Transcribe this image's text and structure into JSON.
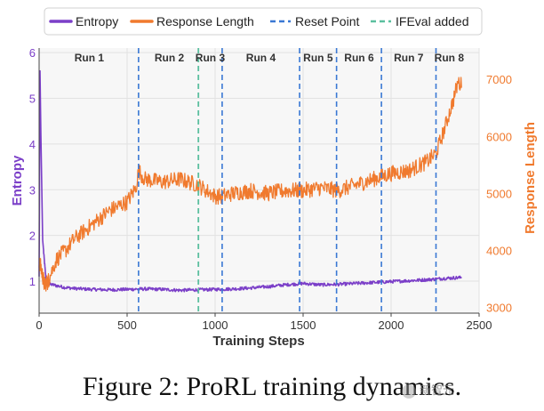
{
  "chart_data": {
    "type": "line",
    "title": "",
    "xlabel": "Training Steps",
    "ylabel_left": "Entropy",
    "ylabel_right": "Response Length",
    "xlim": [
      0,
      2500
    ],
    "ylim_left": [
      0.3,
      6.1
    ],
    "ylim_right": [
      2900,
      7550
    ],
    "x_ticks": [
      0,
      500,
      1000,
      1500,
      2000,
      2500
    ],
    "y_left_ticks": [
      1,
      2,
      3,
      4,
      5,
      6
    ],
    "y_right_ticks": [
      3000,
      4000,
      5000,
      6000,
      7000
    ],
    "grid": true,
    "legend_position": "top",
    "legend": [
      {
        "label": "Entropy",
        "style": "line",
        "color": "#7b3fc8"
      },
      {
        "label": "Response Length",
        "style": "line",
        "color": "#f07a2e"
      },
      {
        "label": "Reset Point",
        "style": "dashed",
        "color": "#3a78d4"
      },
      {
        "label": "IFEval added",
        "style": "dashed",
        "color": "#5bbf9f"
      }
    ],
    "reset_points": [
      565,
      1040,
      1480,
      1690,
      1945,
      2255
    ],
    "ifeval_added": 905,
    "runs": [
      {
        "label": "Run 1",
        "x": 285
      },
      {
        "label": "Run 2",
        "x": 740
      },
      {
        "label": "Run 3",
        "x": 972
      },
      {
        "label": "Run 4",
        "x": 1260
      },
      {
        "label": "Run 5",
        "x": 1585
      },
      {
        "label": "Run 6",
        "x": 1818
      },
      {
        "label": "Run 7",
        "x": 2100
      },
      {
        "label": "Run 8",
        "x": 2330
      }
    ],
    "series": [
      {
        "name": "Entropy",
        "axis": "left",
        "color": "#7b3fc8",
        "x": [
          0,
          5,
          10,
          20,
          40,
          60,
          80,
          100,
          150,
          200,
          300,
          400,
          500,
          600,
          700,
          800,
          900,
          1000,
          1100,
          1200,
          1300,
          1400,
          1500,
          1600,
          1700,
          1800,
          1900,
          2000,
          2100,
          2200,
          2300,
          2400
        ],
        "y": [
          1.1,
          5.6,
          4.2,
          1.9,
          1.0,
          0.93,
          0.92,
          0.9,
          0.86,
          0.84,
          0.82,
          0.81,
          0.82,
          0.83,
          0.82,
          0.8,
          0.81,
          0.82,
          0.83,
          0.85,
          0.88,
          0.92,
          0.95,
          0.92,
          0.93,
          0.95,
          0.97,
          0.99,
          1.01,
          1.03,
          1.06,
          1.08
        ]
      },
      {
        "name": "Response Length",
        "axis": "right",
        "color": "#f07a2e",
        "x": [
          0,
          10,
          30,
          50,
          80,
          100,
          150,
          200,
          300,
          400,
          500,
          550,
          565,
          600,
          700,
          800,
          900,
          1000,
          1040,
          1100,
          1200,
          1300,
          1400,
          1500,
          1600,
          1700,
          1800,
          1900,
          2000,
          2100,
          2200,
          2255,
          2300,
          2350,
          2380,
          2400
        ],
        "y": [
          3800,
          3700,
          3400,
          3450,
          3700,
          3850,
          4000,
          4200,
          4450,
          4700,
          4850,
          5100,
          5400,
          5250,
          5200,
          5250,
          5150,
          4950,
          4950,
          5000,
          5050,
          5000,
          5050,
          5050,
          5100,
          5050,
          5150,
          5250,
          5350,
          5400,
          5550,
          5700,
          6100,
          6600,
          6950,
          6900
        ]
      }
    ]
  },
  "caption": {
    "text": "Figure 2: ProRL training dynamics.",
    "watermark": "新智元"
  }
}
